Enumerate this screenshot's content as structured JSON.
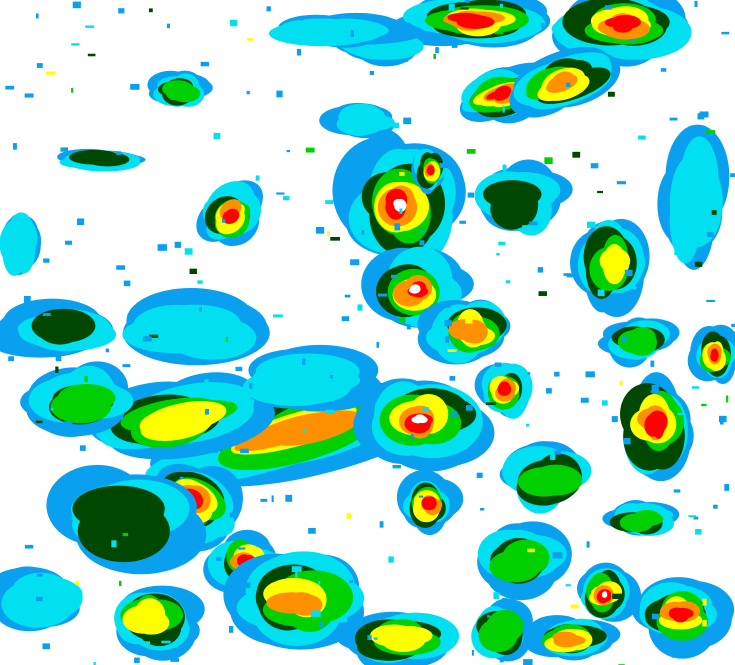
{
  "map": {
    "type": "precipitation-intensity-radar",
    "color_scale": [
      "#0aa0f0",
      "#00e0f0",
      "#004800",
      "#00d000",
      "#ffff00",
      "#ff9000",
      "#ff0000",
      "#ffffff"
    ]
  }
}
